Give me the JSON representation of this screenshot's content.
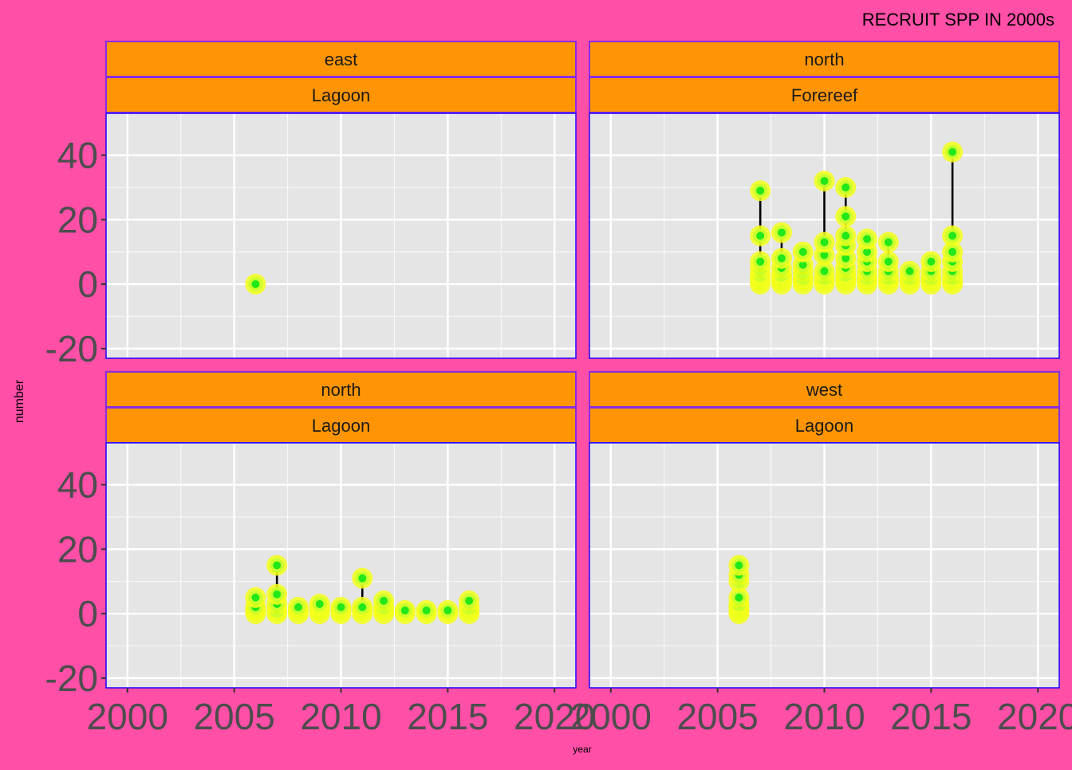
{
  "chart_data": {
    "type": "scatter",
    "title": "RECRUIT SPP IN 2000s",
    "xlabel": "year",
    "ylabel": "number",
    "xlim": [
      1999,
      2021
    ],
    "ylim": [
      -23,
      53
    ],
    "x_ticks": [
      2000,
      2005,
      2010,
      2015,
      2020
    ],
    "y_ticks": [
      -20,
      0,
      20,
      40
    ],
    "grid": true,
    "colors": {
      "background": "#ff4fa7",
      "panel": "#e5e5e5",
      "panel_border": "#1f00ff",
      "strip_fill": "#ff9505",
      "strip_border": "#8a2be2",
      "point_outer": "#f4ff1a",
      "point_ring": "#c8ff2a",
      "point_inner": "#22e81a",
      "segment": "#000000"
    },
    "panels": [
      {
        "strips": [
          "east",
          "Lagoon"
        ],
        "groups": [
          {
            "year": 2006,
            "values": [
              0
            ]
          }
        ]
      },
      {
        "strips": [
          "north",
          "Forereef"
        ],
        "groups": [
          {
            "year": 2007,
            "values": [
              0,
              1,
              2,
              3,
              5,
              7,
              15,
              29
            ]
          },
          {
            "year": 2008,
            "values": [
              0,
              1,
              2,
              3,
              5,
              8,
              16
            ]
          },
          {
            "year": 2009,
            "values": [
              0,
              1,
              2,
              4,
              6,
              10
            ]
          },
          {
            "year": 2010,
            "values": [
              0,
              1,
              2,
              4,
              9,
              13,
              32
            ]
          },
          {
            "year": 2011,
            "values": [
              0,
              1,
              2,
              3,
              5,
              8,
              12,
              15,
              21,
              30
            ]
          },
          {
            "year": 2012,
            "values": [
              0,
              1,
              2,
              4,
              7,
              10,
              14
            ]
          },
          {
            "year": 2013,
            "values": [
              0,
              1,
              2,
              4,
              7,
              13
            ]
          },
          {
            "year": 2014,
            "values": [
              0,
              1,
              2,
              4
            ]
          },
          {
            "year": 2015,
            "values": [
              0,
              1,
              2,
              4,
              7
            ]
          },
          {
            "year": 2016,
            "values": [
              0,
              1,
              2,
              4,
              7,
              10,
              15,
              41
            ]
          }
        ]
      },
      {
        "strips": [
          "north",
          "Lagoon"
        ],
        "groups": [
          {
            "year": 2006,
            "values": [
              0,
              1,
              2,
              5
            ]
          },
          {
            "year": 2007,
            "values": [
              0,
              1,
              3,
              6,
              15
            ]
          },
          {
            "year": 2008,
            "values": [
              0,
              1,
              2
            ]
          },
          {
            "year": 2009,
            "values": [
              0,
              1,
              2,
              3
            ]
          },
          {
            "year": 2010,
            "values": [
              0,
              1,
              2
            ]
          },
          {
            "year": 2011,
            "values": [
              0,
              1,
              2,
              11
            ]
          },
          {
            "year": 2012,
            "values": [
              0,
              1,
              2,
              4
            ]
          },
          {
            "year": 2013,
            "values": [
              0,
              1
            ]
          },
          {
            "year": 2014,
            "values": [
              0,
              1
            ]
          },
          {
            "year": 2015,
            "values": [
              0,
              1
            ]
          },
          {
            "year": 2016,
            "values": [
              0,
              1,
              2,
              4
            ]
          }
        ]
      },
      {
        "strips": [
          "west",
          "Lagoon"
        ],
        "groups": [
          {
            "year": 2006,
            "values": [
              0,
              1,
              2,
              3,
              5,
              10,
              12,
              15
            ]
          }
        ]
      }
    ]
  }
}
